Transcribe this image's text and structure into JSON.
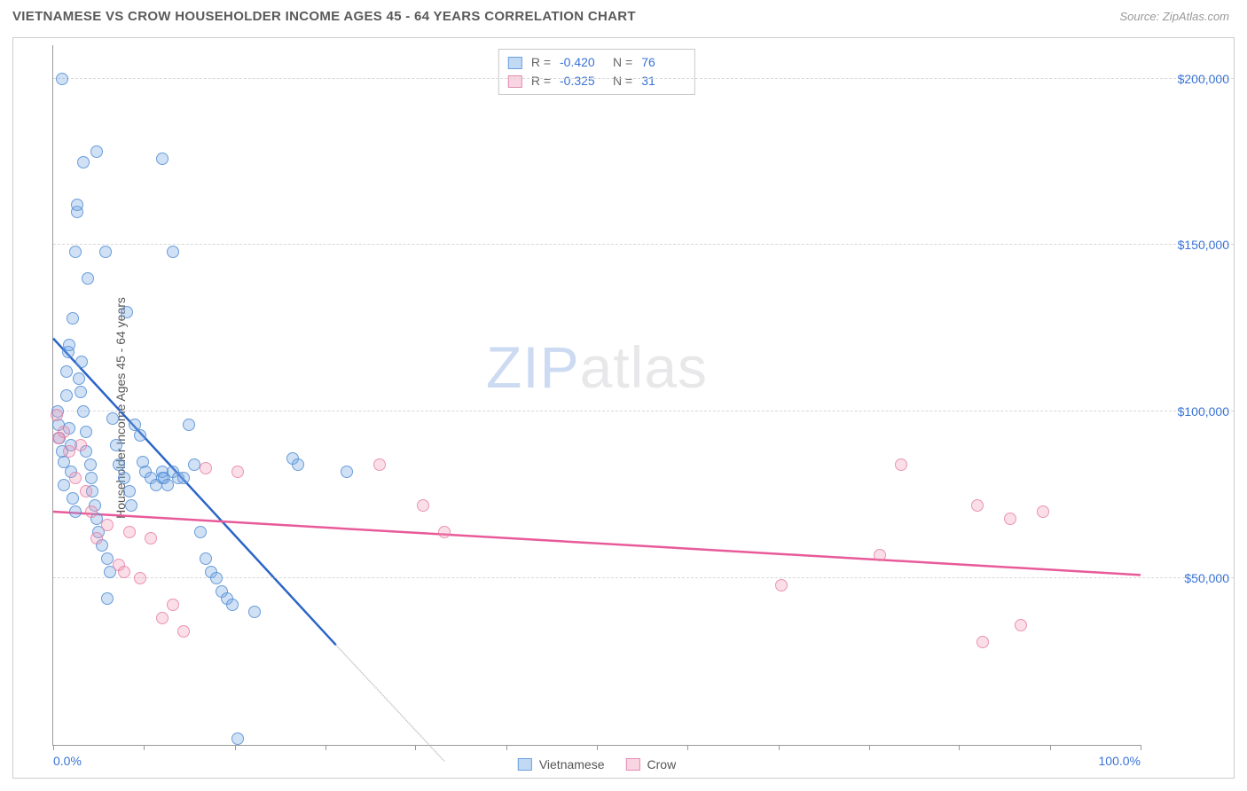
{
  "header": {
    "title": "VIETNAMESE VS CROW HOUSEHOLDER INCOME AGES 45 - 64 YEARS CORRELATION CHART",
    "source": "Source: ZipAtlas.com"
  },
  "watermark": {
    "part1": "ZIP",
    "part2": "atlas"
  },
  "axes": {
    "y_label": "Householder Income Ages 45 - 64 years",
    "x_min": 0,
    "x_max": 100,
    "y_min": 0,
    "y_max": 210000,
    "x_ticks": [
      0,
      8.3,
      16.7,
      25,
      33.3,
      41.7,
      50,
      58.3,
      66.7,
      75,
      83.3,
      91.7,
      100
    ],
    "x_tick_labels": {
      "0": "0.0%",
      "100": "100.0%"
    },
    "y_gridlines": [
      50000,
      100000,
      150000,
      200000
    ],
    "y_tick_labels": {
      "50000": "$50,000",
      "100000": "$100,000",
      "150000": "$150,000",
      "200000": "$200,000"
    }
  },
  "series": [
    {
      "name": "Vietnamese",
      "color_fill": "rgba(120,170,230,0.35)",
      "color_stroke": "#6aa0dd",
      "line_color": "#2b65c7",
      "stats": {
        "R": "-0.420",
        "N": "76"
      },
      "trend": {
        "x1": 0,
        "y1": 122000,
        "x2": 26,
        "y2": 30000,
        "dash_x2": 36,
        "dash_y2": -5000
      },
      "points": [
        [
          0.4,
          100000
        ],
        [
          0.5,
          96000
        ],
        [
          0.6,
          92000
        ],
        [
          0.8,
          88000
        ],
        [
          0.8,
          200000
        ],
        [
          1.0,
          85000
        ],
        [
          1.0,
          78000
        ],
        [
          1.2,
          112000
        ],
        [
          1.2,
          105000
        ],
        [
          1.4,
          118000
        ],
        [
          1.5,
          120000
        ],
        [
          1.5,
          95000
        ],
        [
          1.6,
          90000
        ],
        [
          1.6,
          82000
        ],
        [
          1.8,
          128000
        ],
        [
          1.8,
          74000
        ],
        [
          2.0,
          148000
        ],
        [
          2.0,
          70000
        ],
        [
          2.2,
          160000
        ],
        [
          2.2,
          162000
        ],
        [
          2.4,
          110000
        ],
        [
          2.5,
          106000
        ],
        [
          2.6,
          115000
        ],
        [
          2.8,
          175000
        ],
        [
          2.8,
          100000
        ],
        [
          3.0,
          94000
        ],
        [
          3.0,
          88000
        ],
        [
          3.2,
          140000
        ],
        [
          3.4,
          84000
        ],
        [
          3.5,
          80000
        ],
        [
          3.6,
          76000
        ],
        [
          3.8,
          72000
        ],
        [
          4.0,
          178000
        ],
        [
          4.0,
          68000
        ],
        [
          4.2,
          64000
        ],
        [
          4.5,
          60000
        ],
        [
          4.8,
          148000
        ],
        [
          5.0,
          56000
        ],
        [
          5.0,
          44000
        ],
        [
          5.2,
          52000
        ],
        [
          5.5,
          98000
        ],
        [
          5.8,
          90000
        ],
        [
          6.0,
          84000
        ],
        [
          6.5,
          80000
        ],
        [
          6.8,
          130000
        ],
        [
          7.0,
          76000
        ],
        [
          7.2,
          72000
        ],
        [
          7.5,
          96000
        ],
        [
          8.0,
          93000
        ],
        [
          8.2,
          85000
        ],
        [
          8.5,
          82000
        ],
        [
          9.0,
          80000
        ],
        [
          9.5,
          78000
        ],
        [
          10.0,
          176000
        ],
        [
          10.0,
          80000
        ],
        [
          10.0,
          82000
        ],
        [
          10.2,
          80000
        ],
        [
          10.5,
          78000
        ],
        [
          11.0,
          148000
        ],
        [
          11.0,
          82000
        ],
        [
          11.5,
          80000
        ],
        [
          12.0,
          80000
        ],
        [
          12.5,
          96000
        ],
        [
          13.0,
          84000
        ],
        [
          13.5,
          64000
        ],
        [
          14.0,
          56000
        ],
        [
          14.5,
          52000
        ],
        [
          15.0,
          50000
        ],
        [
          15.5,
          46000
        ],
        [
          16.0,
          44000
        ],
        [
          16.5,
          42000
        ],
        [
          17.0,
          2000
        ],
        [
          18.5,
          40000
        ],
        [
          22.0,
          86000
        ],
        [
          22.5,
          84000
        ],
        [
          27.0,
          82000
        ]
      ]
    },
    {
      "name": "Crow",
      "color_fill": "rgba(240,150,180,0.30)",
      "color_stroke": "#e28bb0",
      "line_color": "#e85a9a",
      "stats": {
        "R": "-0.325",
        "N": "31"
      },
      "trend": {
        "x1": 0,
        "y1": 70000,
        "x2": 100,
        "y2": 51000
      },
      "points": [
        [
          0.3,
          99000
        ],
        [
          0.5,
          92000
        ],
        [
          1.0,
          94000
        ],
        [
          1.5,
          88000
        ],
        [
          2.0,
          80000
        ],
        [
          2.5,
          90000
        ],
        [
          3.0,
          76000
        ],
        [
          3.5,
          70000
        ],
        [
          4.0,
          62000
        ],
        [
          5.0,
          66000
        ],
        [
          6.0,
          54000
        ],
        [
          6.5,
          52000
        ],
        [
          7.0,
          64000
        ],
        [
          8.0,
          50000
        ],
        [
          9.0,
          62000
        ],
        [
          10.0,
          38000
        ],
        [
          11.0,
          42000
        ],
        [
          12.0,
          34000
        ],
        [
          14.0,
          83000
        ],
        [
          17.0,
          82000
        ],
        [
          30.0,
          84000
        ],
        [
          34.0,
          72000
        ],
        [
          36.0,
          64000
        ],
        [
          76.0,
          57000
        ],
        [
          78.0,
          84000
        ],
        [
          67.0,
          48000
        ],
        [
          85.0,
          72000
        ],
        [
          88.0,
          68000
        ],
        [
          91.0,
          70000
        ],
        [
          85.5,
          31000
        ],
        [
          89.0,
          36000
        ]
      ]
    }
  ],
  "legend": {
    "series1": "Vietnamese",
    "series2": "Crow"
  },
  "style": {
    "point_radius": 7,
    "background": "#ffffff",
    "grid_color": "#d8d8d8",
    "axis_color": "#999999",
    "text_color": "#555555",
    "value_color": "#3973d6",
    "title_fontsize": 15,
    "label_fontsize": 14,
    "watermark_fontsize": 66
  }
}
